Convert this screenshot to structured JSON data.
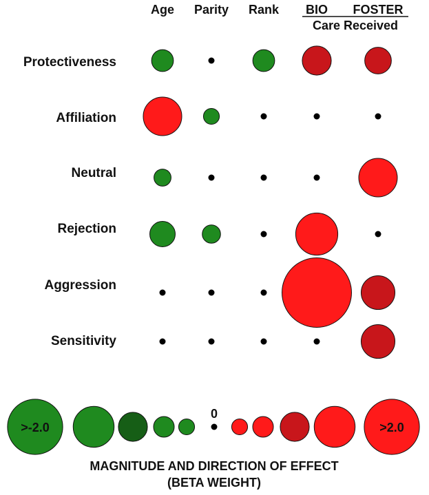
{
  "chart_data": {
    "type": "bubble-matrix",
    "columns": [
      "Age",
      "Parity",
      "Rank",
      "BIO",
      "FOSTER"
    ],
    "column_group_label": "Care Received",
    "rows": [
      "Protectiveness",
      "Affiliation",
      "Neutral",
      "Rejection",
      "Aggression",
      "Sensitivity"
    ],
    "beta_weights": [
      [
        -0.6,
        0,
        -0.6,
        0.9,
        0.8
      ],
      [
        1.3,
        -0.35,
        0,
        0,
        0
      ],
      [
        -0.4,
        0,
        0,
        0,
        1.3
      ],
      [
        -0.75,
        -0.45,
        0,
        1.45,
        0
      ],
      [
        0,
        0,
        0,
        2.6,
        1.1
      ],
      [
        0,
        0,
        0,
        0,
        1.1
      ]
    ],
    "legend": {
      "values": [
        -2.0,
        -1.4,
        -0.9,
        -0.55,
        -0.35,
        0,
        0.35,
        0.55,
        0.9,
        1.4,
        2.0
      ],
      "labels": [
        ">-2.0",
        "",
        "",
        "",
        "",
        "0",
        "",
        "",
        "",
        "",
        ">2.0"
      ],
      "title_line1": "MAGNITUDE AND DIRECTION OF EFFECT",
      "title_line2": "(BETA WEIGHT)"
    },
    "colors": {
      "positive": "#ff1a1a",
      "positive_dark": "#c8161b",
      "negative": "#1f8a1f",
      "negative_dark": "#165e16",
      "zero": "#000000"
    }
  }
}
